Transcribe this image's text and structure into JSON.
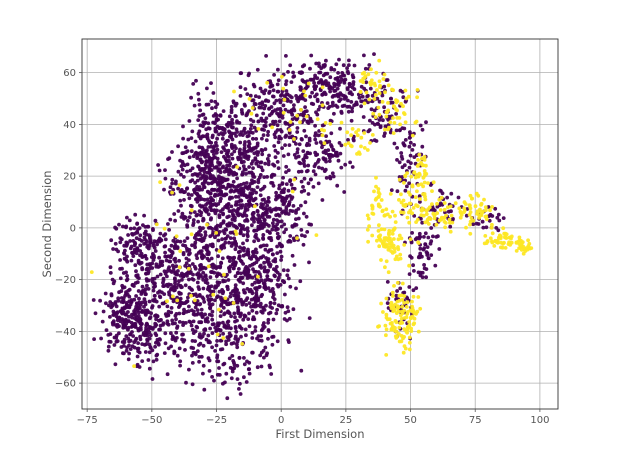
{
  "chart_data": {
    "type": "scatter",
    "title": "",
    "xlabel": "First Dimension",
    "ylabel": "Second Dimension",
    "xlim": [
      -77,
      107
    ],
    "ylim": [
      -70,
      73
    ],
    "xticks": [
      -75,
      -50,
      -25,
      0,
      25,
      50,
      75,
      100
    ],
    "yticks": [
      -60,
      -40,
      -20,
      0,
      20,
      40,
      60
    ],
    "grid": true,
    "legend": "none",
    "colors": {
      "class_0": "#440154",
      "class_1": "#fde725"
    },
    "series": [
      {
        "color": "#440154",
        "regions": [
          {
            "cx": -58,
            "cy": -35,
            "rx": 10,
            "ry": 14,
            "n": 260
          },
          {
            "cx": -56,
            "cy": -8,
            "rx": 9,
            "ry": 11,
            "n": 120
          },
          {
            "cx": -42,
            "cy": -25,
            "rx": 14,
            "ry": 26,
            "n": 330
          },
          {
            "cx": -28,
            "cy": -15,
            "rx": 14,
            "ry": 40,
            "n": 420
          },
          {
            "cx": -15,
            "cy": -20,
            "rx": 12,
            "ry": 38,
            "n": 360
          },
          {
            "cx": -5,
            "cy": -20,
            "rx": 10,
            "ry": 22,
            "n": 160
          },
          {
            "cx": -30,
            "cy": 20,
            "rx": 12,
            "ry": 14,
            "n": 200
          },
          {
            "cx": -20,
            "cy": 35,
            "rx": 14,
            "ry": 20,
            "n": 260
          },
          {
            "cx": -10,
            "cy": 10,
            "rx": 12,
            "ry": 18,
            "n": 220
          },
          {
            "cx": 2,
            "cy": 10,
            "rx": 8,
            "ry": 14,
            "n": 90
          },
          {
            "cx": 0,
            "cy": 45,
            "rx": 13,
            "ry": 16,
            "n": 220
          },
          {
            "cx": 20,
            "cy": 55,
            "rx": 14,
            "ry": 10,
            "n": 180
          },
          {
            "cx": 15,
            "cy": 28,
            "rx": 10,
            "ry": 12,
            "n": 110
          },
          {
            "cx": 38,
            "cy": 45,
            "rx": 10,
            "ry": 12,
            "n": 90
          },
          {
            "cx": 50,
            "cy": 25,
            "rx": 6,
            "ry": 14,
            "n": 60
          },
          {
            "cx": 55,
            "cy": -5,
            "rx": 6,
            "ry": 16,
            "n": 70
          },
          {
            "cx": 46,
            "cy": -30,
            "rx": 5,
            "ry": 10,
            "n": 40
          },
          {
            "cx": 64,
            "cy": 8,
            "rx": 6,
            "ry": 6,
            "n": 30
          },
          {
            "cx": 80,
            "cy": 3,
            "rx": 7,
            "ry": 5,
            "n": 25
          }
        ]
      },
      {
        "color": "#fde725",
        "regions": [
          {
            "cx": 47,
            "cy": -35,
            "rx": 7,
            "ry": 12,
            "n": 110
          },
          {
            "cx": 42,
            "cy": -5,
            "rx": 6,
            "ry": 10,
            "n": 60
          },
          {
            "cx": 38,
            "cy": 8,
            "rx": 4,
            "ry": 10,
            "n": 40
          },
          {
            "cx": 52,
            "cy": 12,
            "rx": 6,
            "ry": 10,
            "n": 50
          },
          {
            "cx": 60,
            "cy": 5,
            "rx": 8,
            "ry": 8,
            "n": 50
          },
          {
            "cx": 75,
            "cy": 6,
            "rx": 6,
            "ry": 6,
            "n": 45
          },
          {
            "cx": 85,
            "cy": -5,
            "rx": 7,
            "ry": 4,
            "n": 50
          },
          {
            "cx": 94,
            "cy": -7,
            "rx": 3,
            "ry": 2,
            "n": 25
          },
          {
            "cx": 45,
            "cy": 45,
            "rx": 8,
            "ry": 10,
            "n": 45
          },
          {
            "cx": 35,
            "cy": 55,
            "rx": 6,
            "ry": 8,
            "n": 30
          },
          {
            "cx": 30,
            "cy": 35,
            "rx": 5,
            "ry": 6,
            "n": 20
          },
          {
            "cx": 54,
            "cy": 22,
            "rx": 3,
            "ry": 6,
            "n": 20
          },
          {
            "cx": -25,
            "cy": -10,
            "rx": 35,
            "ry": 40,
            "n": 40
          },
          {
            "cx": 5,
            "cy": 45,
            "rx": 20,
            "ry": 15,
            "n": 30
          }
        ]
      }
    ]
  }
}
